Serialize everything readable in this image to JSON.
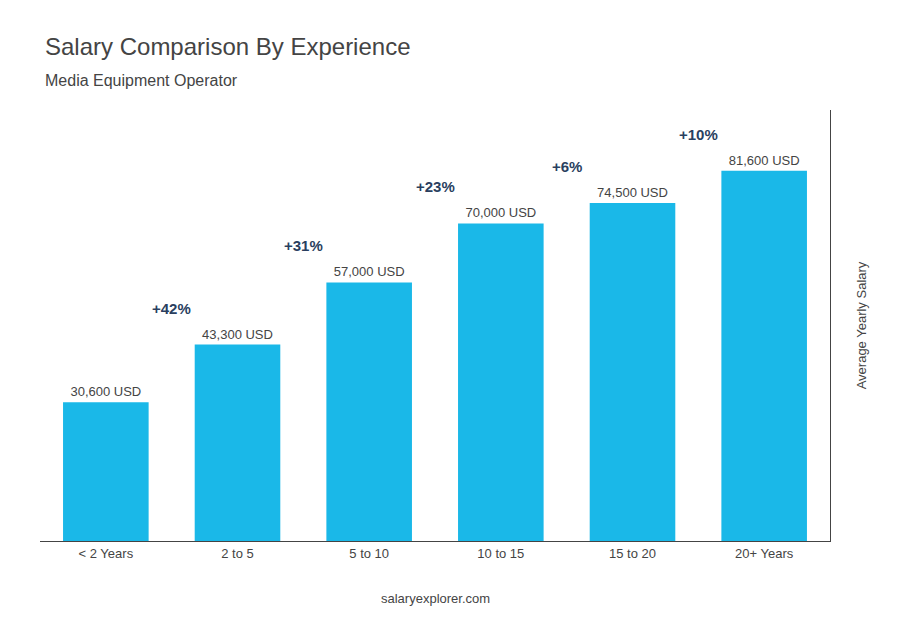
{
  "chart_data": {
    "type": "bar",
    "title": "Salary Comparison By Experience",
    "subtitle": "Media Equipment Operator",
    "categories": [
      "< 2 Years",
      "2 to 5",
      "5 to 10",
      "10 to 15",
      "15 to 20",
      "20+ Years"
    ],
    "values": [
      30600,
      43300,
      57000,
      70000,
      74500,
      81600
    ],
    "value_labels": [
      "30,600 USD",
      "43,300 USD",
      "57,000 USD",
      "70,000 USD",
      "74,500 USD",
      "81,600 USD"
    ],
    "data_labels": true,
    "color": "#1ab8e8",
    "ylabel": "Average Yearly Salary",
    "ylim": [
      0,
      95000
    ],
    "tick_labels": "x",
    "grid": false,
    "annotations": [
      "+42%",
      "+31%",
      "+23%",
      "+6%",
      "+10%"
    ],
    "source": "salaryexplorer.com"
  }
}
